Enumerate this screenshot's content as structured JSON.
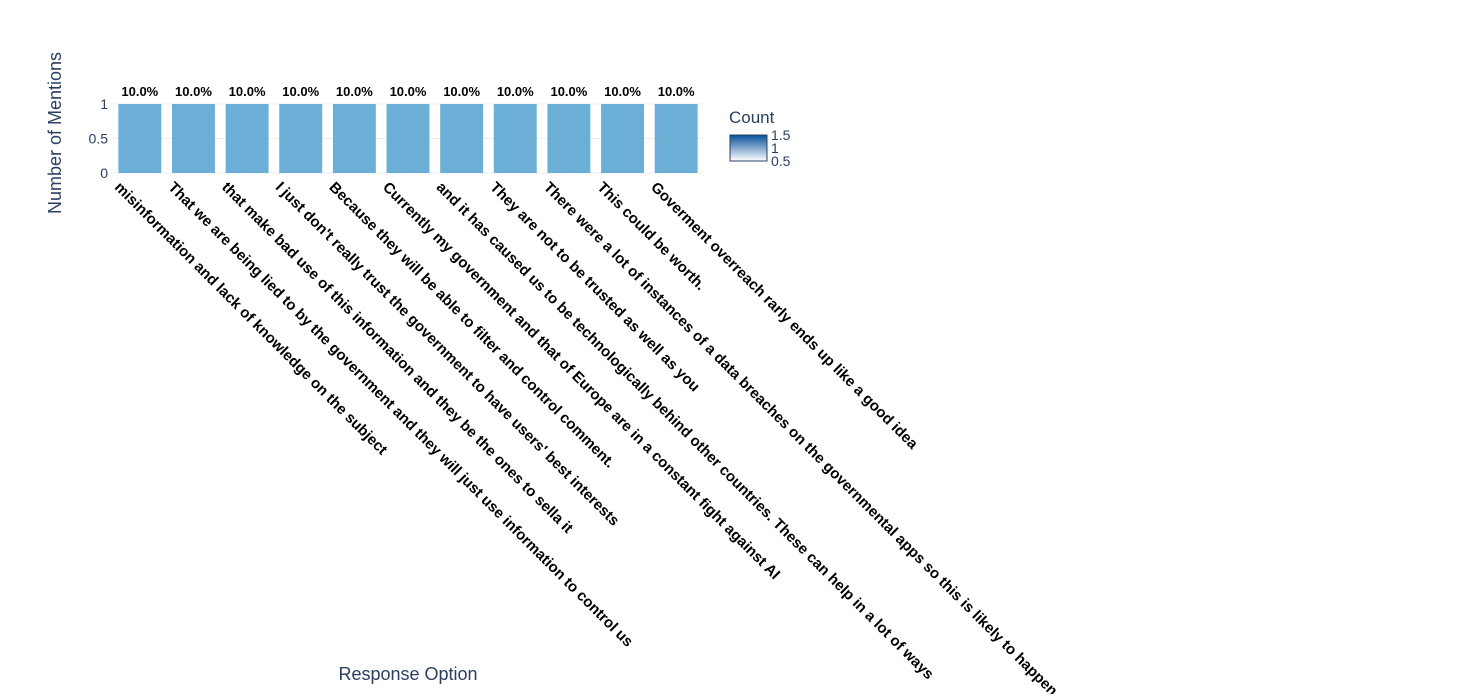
{
  "chart_data": {
    "type": "bar",
    "categories": [
      "misinformation and lack of knowledge on the subject",
      "That we are being lied to by the government and they will just use information to control us",
      "that make bad use of this information and they be the ones to sella it",
      "I just don't really trust the government to have users' best interests",
      "Because they will be able to filter and control comment.",
      "Currently my government and that of Europe are in a constant fight against AI",
      "and it has caused us to be technologically behind other countries. These can help in a lot of ways",
      "They are not to be trusted as well as you",
      "There were a lot of instances of a data breaches on the governmental apps so this is likely to happen again",
      "This could be worth.",
      "Goverment overreach rarly ends up like a good idea"
    ],
    "values": [
      1,
      1,
      1,
      1,
      1,
      1,
      1,
      1,
      1,
      1,
      1
    ],
    "data_labels": [
      "10.0%",
      "10.0%",
      "10.0%",
      "10.0%",
      "10.0%",
      "10.0%",
      "10.0%",
      "10.0%",
      "10.0%",
      "10.0%",
      "10.0%"
    ],
    "xlabel": "Response Option",
    "ylabel": "Number of Mentions",
    "ylim": [
      0,
      1
    ],
    "yticks": [
      "0",
      "0.5",
      "1"
    ],
    "grid": true,
    "bar_color": "#6baed6",
    "colorbar": {
      "title": "Count",
      "ticks": [
        "1.5",
        "1",
        "0.5"
      ],
      "colors": [
        "#08519c",
        "#ffffff"
      ]
    }
  }
}
